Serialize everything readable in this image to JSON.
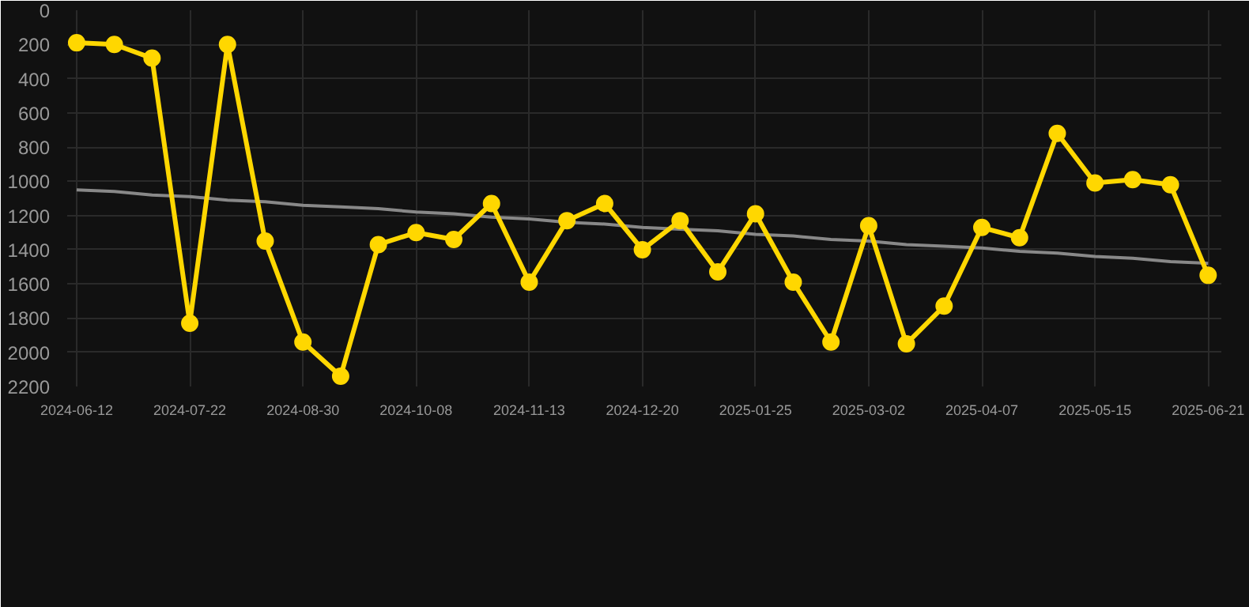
{
  "chart_data": {
    "type": "line",
    "categories": [
      "2024-06-12",
      null,
      null,
      "2024-07-22",
      null,
      null,
      "2024-08-30",
      null,
      null,
      "2024-10-08",
      null,
      null,
      "2024-11-13",
      null,
      null,
      "2024-12-20",
      null,
      null,
      "2025-01-25",
      null,
      null,
      "2025-03-02",
      null,
      null,
      "2025-04-07",
      null,
      null,
      "2025-05-15",
      null,
      null,
      "2025-06-21"
    ],
    "series": [
      {
        "color": "#ffd700",
        "values": [
          190,
          200,
          280,
          1830,
          200,
          1350,
          1940,
          2140,
          1370,
          1300,
          1340,
          1130,
          1590,
          1230,
          1130,
          1400,
          1230,
          1530,
          1190,
          1590,
          1940,
          1260,
          1950,
          1730,
          1270,
          1330,
          720,
          1010,
          990,
          1020,
          1550
        ],
        "marker": "circle"
      },
      {
        "type": "line",
        "color": "#888888",
        "values": [
          1050,
          1060,
          1080,
          1090,
          1110,
          1120,
          1140,
          1150,
          1160,
          1180,
          1190,
          1210,
          1220,
          1240,
          1250,
          1270,
          1280,
          1290,
          1310,
          1320,
          1340,
          1350,
          1370,
          1380,
          1390,
          1410,
          1420,
          1440,
          1450,
          1470,
          1480
        ],
        "marker": "none"
      }
    ],
    "ylim": [
      2200,
      0
    ],
    "yticks": [
      0,
      200,
      400,
      600,
      800,
      1000,
      1200,
      1400,
      1600,
      1800,
      2000,
      2200
    ],
    "grid": true,
    "line_style": "solid"
  }
}
